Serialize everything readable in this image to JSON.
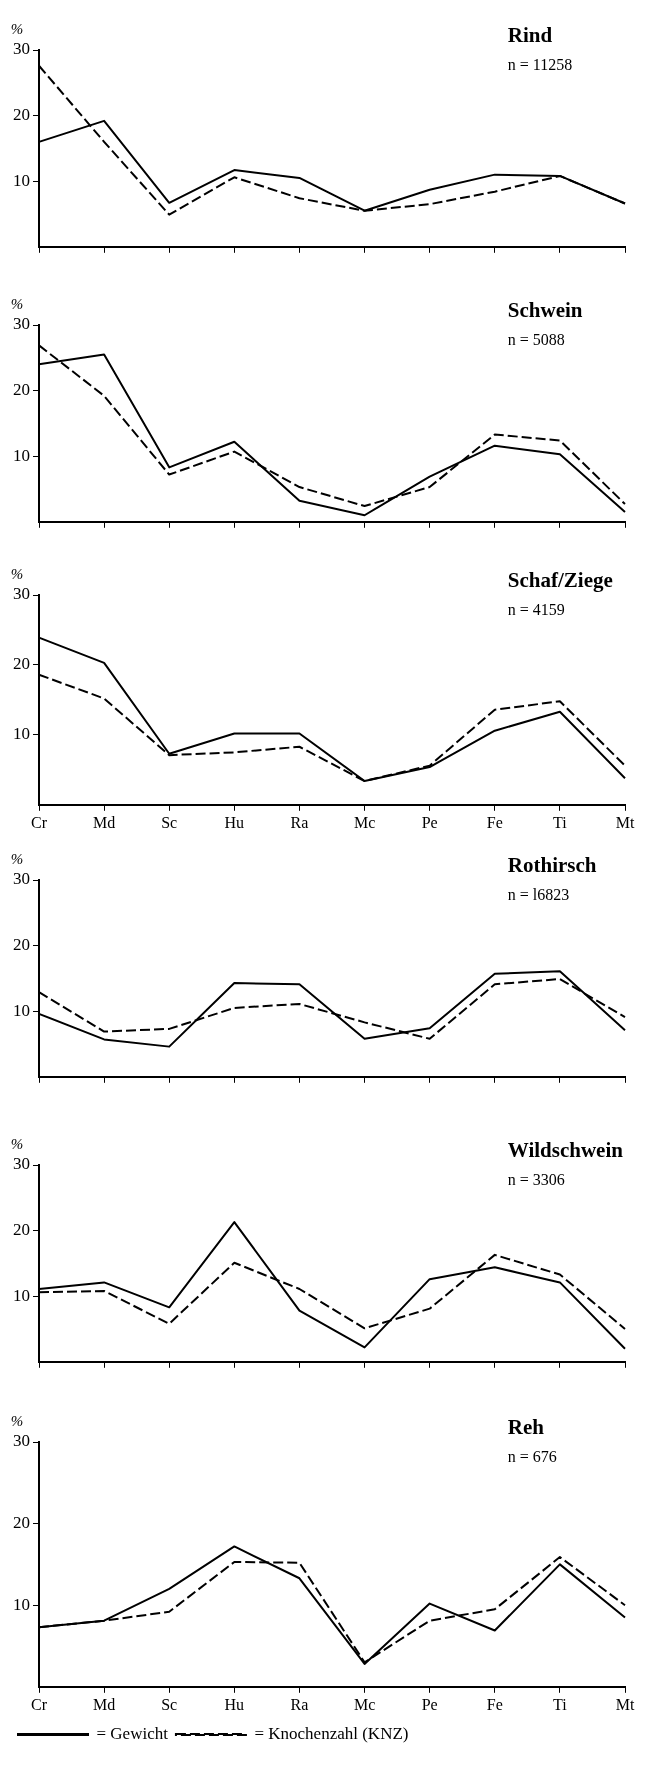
{
  "chart_data": [
    {
      "type": "line",
      "title": "Rind",
      "subtitle": "n = 11258",
      "ylabel": "%",
      "categories": [
        null,
        null,
        null,
        null,
        null,
        null,
        null,
        null,
        null,
        null
      ],
      "ylim": [
        0,
        30
      ],
      "yticks": [
        10,
        20,
        30
      ],
      "grid": false,
      "legend": false,
      "marker": "none",
      "tick_labels": "y",
      "series": [
        {
          "color": "#000000",
          "line_style": "solid",
          "values": [
            16,
            19.2,
            6.7,
            11.7,
            10.5,
            5.5,
            8.7,
            11,
            10.8,
            6.6
          ]
        },
        {
          "color": "#000000",
          "line_style": "dashed",
          "values": [
            27.6,
            16,
            4.9,
            10.6,
            7.4,
            5.5,
            6.5,
            8.4,
            10.8,
            6.6
          ]
        }
      ]
    },
    {
      "type": "line",
      "title": "Schwein",
      "subtitle": "n = 5088",
      "ylabel": "%",
      "categories": [
        null,
        null,
        null,
        null,
        null,
        null,
        null,
        null,
        null,
        null
      ],
      "ylim": [
        0,
        30
      ],
      "yticks": [
        10,
        20,
        30
      ],
      "grid": false,
      "legend": false,
      "marker": "none",
      "tick_labels": "y",
      "series": [
        {
          "color": "#000000",
          "line_style": "solid",
          "values": [
            24,
            25.5,
            8.3,
            12.2,
            3.2,
            1,
            6.9,
            11.6,
            10.3,
            1.5
          ]
        },
        {
          "color": "#000000",
          "line_style": "dashed",
          "values": [
            26.9,
            19.2,
            7.2,
            10.7,
            5.3,
            2.4,
            5.3,
            13.3,
            12.4,
            2.7
          ]
        }
      ]
    },
    {
      "type": "line",
      "title": "Schaf/Ziege",
      "subtitle": "n = 4159",
      "ylabel": "%",
      "categories": [
        "Cr",
        "Md",
        "Sc",
        "Hu",
        "Ra",
        "Mc",
        "Pe",
        "Fe",
        "Ti",
        "Mt"
      ],
      "ylim": [
        0,
        30
      ],
      "yticks": [
        10,
        20,
        30
      ],
      "grid": false,
      "legend": false,
      "marker": "none",
      "series": [
        {
          "color": "#000000",
          "line_style": "solid",
          "values": [
            23.9,
            20.3,
            7.3,
            10.2,
            10.2,
            3.4,
            5.4,
            10.6,
            13.3,
            3.8
          ]
        },
        {
          "color": "#000000",
          "line_style": "dashed",
          "values": [
            18.6,
            15.2,
            7.1,
            7.5,
            8.3,
            3.4,
            5.6,
            13.6,
            14.8,
            5.6
          ]
        }
      ]
    },
    {
      "type": "line",
      "title": "Rothirsch",
      "subtitle": "n = l6823",
      "ylabel": "%",
      "categories": [
        null,
        null,
        null,
        null,
        null,
        null,
        null,
        null,
        null,
        null
      ],
      "ylim": [
        0,
        30
      ],
      "yticks": [
        10,
        20,
        30
      ],
      "grid": false,
      "legend": false,
      "marker": "none",
      "tick_labels": "y",
      "series": [
        {
          "color": "#000000",
          "line_style": "solid",
          "values": [
            9.6,
            5.7,
            4.6,
            14.3,
            14.1,
            5.8,
            7.4,
            15.7,
            16.1,
            7.1
          ]
        },
        {
          "color": "#000000",
          "line_style": "dashed",
          "values": [
            12.9,
            6.9,
            7.3,
            10.5,
            11.1,
            8.3,
            5.8,
            14.1,
            14.9,
            9.1
          ]
        }
      ]
    },
    {
      "type": "line",
      "title": "Wildschwein",
      "subtitle": "n = 3306",
      "ylabel": "%",
      "categories": [
        null,
        null,
        null,
        null,
        null,
        null,
        null,
        null,
        null,
        null
      ],
      "ylim": [
        0,
        30
      ],
      "yticks": [
        10,
        20,
        30
      ],
      "grid": false,
      "legend": false,
      "marker": "none",
      "tick_labels": "y",
      "series": [
        {
          "color": "#000000",
          "line_style": "solid",
          "values": [
            11.1,
            12.1,
            8.3,
            21.3,
            7.8,
            2.2,
            12.6,
            14.4,
            12.1,
            2
          ]
        },
        {
          "color": "#000000",
          "line_style": "dashed",
          "values": [
            10.6,
            10.8,
            5.8,
            15.1,
            11.1,
            5.1,
            8.1,
            16.3,
            13.3,
            5
          ]
        }
      ]
    },
    {
      "type": "line",
      "title": "Reh",
      "subtitle": "n = 676",
      "ylabel": "%",
      "categories": [
        "Cr",
        "Md",
        "Sc",
        "Hu",
        "Ra",
        "Mc",
        "Pe",
        "Fe",
        "Ti",
        "Mt"
      ],
      "ylim": [
        0,
        30
      ],
      "yticks": [
        10,
        20,
        30
      ],
      "grid": false,
      "legend": "bottom",
      "marker": "none",
      "series": [
        {
          "name": "= Gewicht",
          "color": "#000000",
          "line_style": "solid",
          "values": [
            7.3,
            8.1,
            12,
            17.2,
            13.3,
            2.8,
            10.2,
            6.9,
            15,
            8.5
          ]
        },
        {
          "name": "= Knochenzahl (KNZ)",
          "color": "#000000",
          "line_style": "dashed",
          "values": [
            7.3,
            8.1,
            9.2,
            15.3,
            15.2,
            3,
            8.1,
            9.5,
            15.9,
            10
          ]
        }
      ]
    }
  ]
}
